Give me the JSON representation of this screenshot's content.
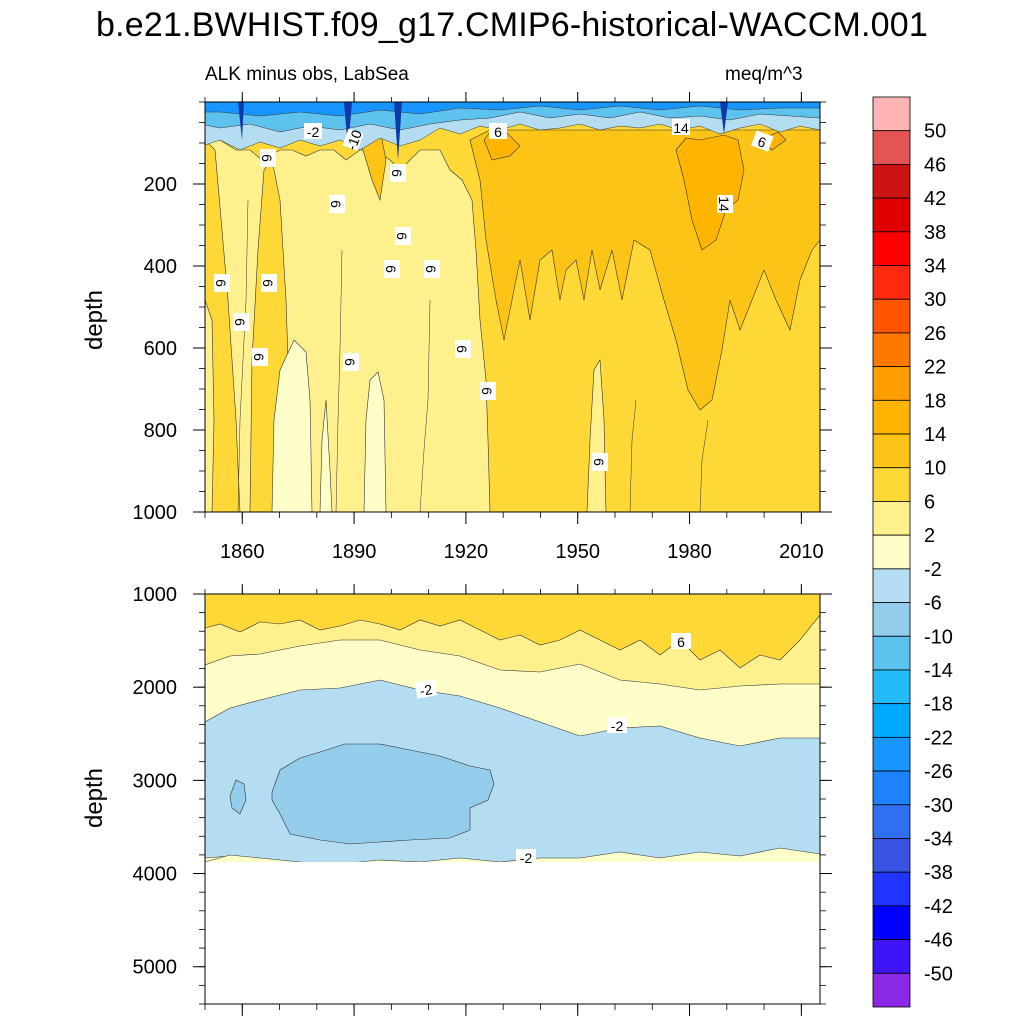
{
  "chart_data": [
    {
      "type": "heatmap",
      "title": "b.e21.BWHIST.f09_g17.CMIP6-historical-WACCM.001",
      "subtitle_left": "ALK minus obs, LabSea",
      "subtitle_right": "meq/m^3",
      "xlabel": "",
      "ylabel": "depth",
      "xlim": [
        1850,
        2015
      ],
      "ylim": [
        1000,
        0
      ],
      "xticks": [
        "1860",
        "1890",
        "1920",
        "1950",
        "1980",
        "2010"
      ],
      "yticks": [
        "200",
        "400",
        "600",
        "800",
        "1000"
      ],
      "contour_labels": [
        "-2",
        "-10",
        "6",
        "6",
        "14",
        "6",
        "6",
        "6",
        "6",
        "6",
        "6",
        "6",
        "6",
        "6",
        "6",
        "6",
        "6",
        "6",
        "6",
        "14",
        "6"
      ],
      "regions": [
        {
          "band": "10 to 14",
          "periods": "1925-2015, upper 600 m; strongest 1975-1990"
        },
        {
          "band": "14 to 18",
          "periods": "1975-1990, 100-300 m"
        },
        {
          "band": "-50 to -2",
          "periods": "surface layer 0-80 m throughout"
        },
        {
          "band": "-2 to 2",
          "periods": "1870-1900, 600-1000 m"
        },
        {
          "band": "2 to 6",
          "periods": "1850-1925, 200-1000 m"
        }
      ]
    },
    {
      "type": "heatmap",
      "xlabel": "",
      "ylabel": "depth",
      "xlim": [
        1850,
        2015
      ],
      "ylim": [
        5400,
        1000
      ],
      "yticks": [
        "1000",
        "2000",
        "3000",
        "4000",
        "5000"
      ],
      "contour_labels": [
        "6",
        "-2",
        "-2",
        "-2"
      ],
      "regions": [
        {
          "band": "2 to 6",
          "periods": "1000-1700 m"
        },
        {
          "band": "-2 to 2",
          "periods": "1700-2500 m and 3800-3880 m"
        },
        {
          "band": "-6 to -2",
          "periods": "2500-3800 m"
        },
        {
          "band": "-10 to -6",
          "periods": "1865-1925, 2700-3600 m"
        }
      ],
      "data_bottom_depth": 3880
    }
  ],
  "colorbar": {
    "levels": [
      "50",
      "46",
      "42",
      "38",
      "34",
      "30",
      "26",
      "22",
      "18",
      "14",
      "10",
      "6",
      "2",
      "-2",
      "-6",
      "-10",
      "-14",
      "-18",
      "-22",
      "-26",
      "-30",
      "-34",
      "-38",
      "-42",
      "-46",
      "-50"
    ],
    "colors_top_to_bottom": [
      "#feb4b4",
      "#e45454",
      "#cc1414",
      "#e00000",
      "#ff0000",
      "#ff2a10",
      "#ff5400",
      "#ff7800",
      "#ff9e00",
      "#ffb400",
      "#fdc418",
      "#fdd836",
      "#fff08e",
      "#fefec8",
      "#b4ddf2",
      "#94cceb",
      "#5ec2ee",
      "#24bcf8",
      "#00aaff",
      "#1896ff",
      "#1e82ff",
      "#3070f0",
      "#3854e0",
      "#2034ff",
      "#0000ff",
      "#4014f8",
      "#8c28e8"
    ]
  },
  "palette": {
    "neg50": "#0c3aa8",
    "neg18": "#24bcf8",
    "neg10": "#5ec2ee",
    "neg6": "#94cceb",
    "neg2": "#b4ddf2",
    "p2": "#fefec8",
    "p6": "#fff08e",
    "p10": "#fdd836",
    "p14": "#fdc418",
    "p18": "#ffb400"
  }
}
